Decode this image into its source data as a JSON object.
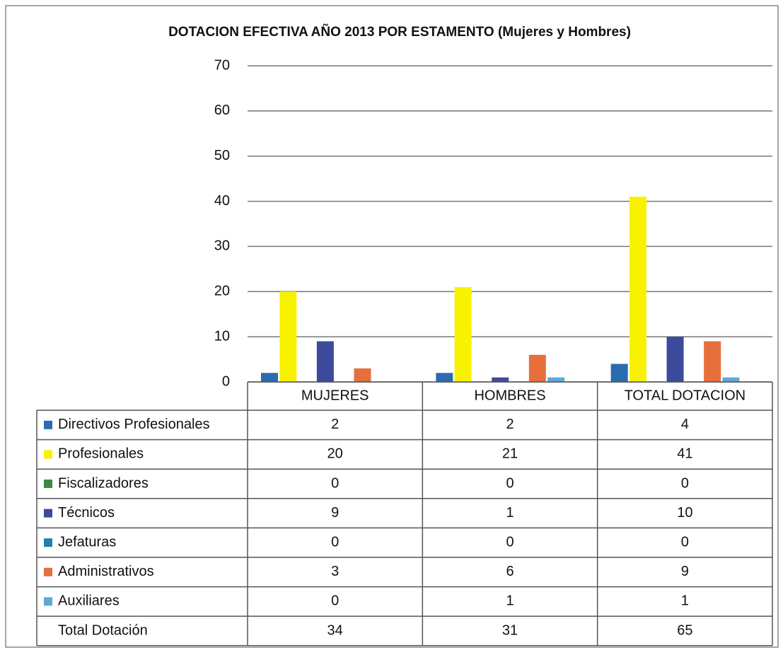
{
  "chart_data": {
    "type": "bar",
    "title": "DOTACION EFECTIVA AÑO 2013 POR ESTAMENTO (Mujeres y Hombres)",
    "categories": [
      "MUJERES",
      "HOMBRES",
      "TOTAL DOTACION"
    ],
    "series": [
      {
        "name": "Directivos Profesionales",
        "color": "#2b6cb0",
        "values": [
          2,
          2,
          4
        ]
      },
      {
        "name": "Profesionales",
        "color": "#f7f200",
        "values": [
          20,
          21,
          41
        ]
      },
      {
        "name": "Fiscalizadores",
        "color": "#3d8a46",
        "values": [
          0,
          0,
          0
        ]
      },
      {
        "name": "Técnicos",
        "color": "#3c4a9c",
        "values": [
          9,
          1,
          10
        ]
      },
      {
        "name": "Jefaturas",
        "color": "#1f80a8",
        "values": [
          0,
          0,
          0
        ]
      },
      {
        "name": "Administrativos",
        "color": "#e66f3c",
        "values": [
          3,
          6,
          9
        ]
      },
      {
        "name": "Auxiliares",
        "color": "#5ea9d9",
        "values": [
          0,
          1,
          1
        ]
      }
    ],
    "table_total": {
      "label": "Total Dotación",
      "values": [
        34,
        31,
        65
      ]
    },
    "ylim": [
      0,
      70
    ],
    "yticks": [
      0,
      10,
      20,
      30,
      40,
      50,
      60,
      70
    ],
    "grid": true
  }
}
